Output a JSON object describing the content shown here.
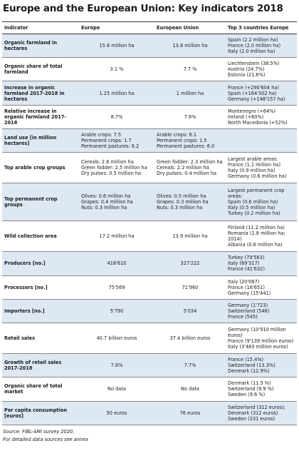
{
  "title": "Europe and the European Union: Key indicators 2018",
  "table": {
    "header": [
      "Indicator",
      "Europe",
      "European Union",
      "Top 3 countries Europe"
    ],
    "rows": [
      [
        "Organic farmland in hectares",
        "15.6 million ha",
        "13.8 million ha",
        [
          "Spain (2.2 million ha)",
          "France (2.0 million ha)",
          "Italy (2.0 million ha)"
        ]
      ],
      [
        "Organic share of total farmland",
        "3.1 %",
        "7.7 %",
        [
          "Liechtenstein (38.5%)",
          "Austria (24.7%)",
          "Estonia (21.6%)"
        ]
      ],
      [
        "Increase in organic farmland 2017-2018 in hectares",
        "1.25 million ha",
        "1 million ha",
        [
          "France (+290'604 ha)",
          "Spain (+164'302 ha)",
          "Germany (+148'157 ha)"
        ]
      ],
      [
        "Relative increase in organic farmland 2017-2018",
        "8.7%",
        "7.6%",
        [
          "Montenegro (+64%)",
          "Ireland (+60%)",
          "North Macedonia (+52%)"
        ]
      ],
      [
        "Land use [in million hectares]",
        [
          "Arable crops: 7.5",
          "Permanent crops: 1.7",
          "Permanent pastures: 6.2"
        ],
        [
          "Arable crops: 6.1",
          "Permanent crops: 1.5",
          "Permanent pastures: 6.0"
        ],
        []
      ],
      [
        "Top arable crop groups",
        [
          "Cereals: 2.6 million ha",
          "Green fodder: 2.5 million ha",
          "Dry pulses: 0.5 million ha"
        ],
        [
          "Green fodder: 2.3 million ha",
          "Cereals: 2.2 million ha",
          "Dry pulses: 0.4 million ha"
        ],
        [
          "Largest arable areas:",
          "France (1.1 million ha)",
          "Italy (0.9 million ha)",
          "Germany (0.6 million ha)"
        ]
      ],
      [
        "Top permanent crop groups",
        [
          "Olives: 0.6 million ha",
          "Grapes: 0.4 million ha",
          "Nuts: 0.3 million ha"
        ],
        [
          "Olives: 0.5 million ha",
          "Grapes: 0.3 million ha",
          "Nuts: 0.3 million ha"
        ],
        [
          "Largest permanent crop areas:",
          "Spain (0.6 million ha)",
          "Italy (0.5 million ha)",
          "Turkey (0.2 million ha)"
        ]
      ],
      [
        "Wild collection area",
        "17.2 million ha",
        "13.9 million ha",
        [
          "Finland (11.2 million ha)",
          "Romania (1.8 million ha; 2014)",
          "Albania (0.6 million ha)"
        ]
      ],
      [
        "Producers [no.]",
        "418'610",
        "327'222",
        [
          "Turkey (79'563)",
          "Italy (69'317)",
          "France (41'632)"
        ]
      ],
      [
        "Processors [no.]",
        "75'569",
        "71'960",
        [
          "Italy (20'087)",
          "France (16'651)",
          "Germany (15'441)"
        ]
      ],
      [
        "Importers [no.]",
        "5'790",
        "5'034",
        [
          "Germany (1'723)",
          "Switzerland (548)",
          "France (545)"
        ]
      ],
      [
        "Retail sales",
        "40.7 billion euros",
        "37.4 billion euros",
        [
          "Germany (10'910 million euros)",
          "France (9'139 million euros)",
          "Italy (3'483 million euros)"
        ]
      ],
      [
        "Growth of retail sales 2017-2018",
        "7.8%",
        "7.7%",
        [
          "France (15.4%)",
          "Switzerland (13.3%)",
          "Denmark (12.9%)"
        ]
      ],
      [
        "Organic share of total market",
        "No data",
        "No data",
        [
          "Denmark (11.5 %)",
          "Switzerland (9.9 %)",
          "Sweden (9.6 %)"
        ]
      ],
      [
        "Per capita consumption [euros]",
        "50 euros",
        "76 euros",
        [
          "Switzerland (312 euros);",
          "Denmark (312 euros)",
          "Sweden (231 euros)"
        ]
      ]
    ]
  },
  "footnotes": [
    "Source: FiBL-AMI survey 2020.",
    "For detailed data sources see annex"
  ]
}
